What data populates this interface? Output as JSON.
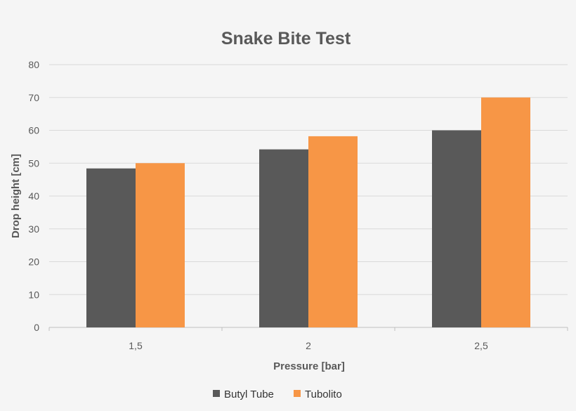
{
  "chart_data": {
    "type": "bar",
    "title": "Snake Bite Test",
    "xlabel": "Pressure [bar]",
    "ylabel": "Drop height [cm]",
    "categories": [
      "1,5",
      "2",
      "2,5"
    ],
    "series": [
      {
        "name": "Butyl Tube",
        "values": [
          48.4,
          54.2,
          60
        ],
        "color": "#595959"
      },
      {
        "name": "Tubolito",
        "values": [
          50,
          58.2,
          70
        ],
        "color": "#f79646"
      }
    ],
    "ylim": [
      0,
      80
    ],
    "yticks": [
      0,
      10,
      20,
      30,
      40,
      50,
      60,
      70,
      80
    ],
    "grid": true,
    "legend": "bottom"
  }
}
